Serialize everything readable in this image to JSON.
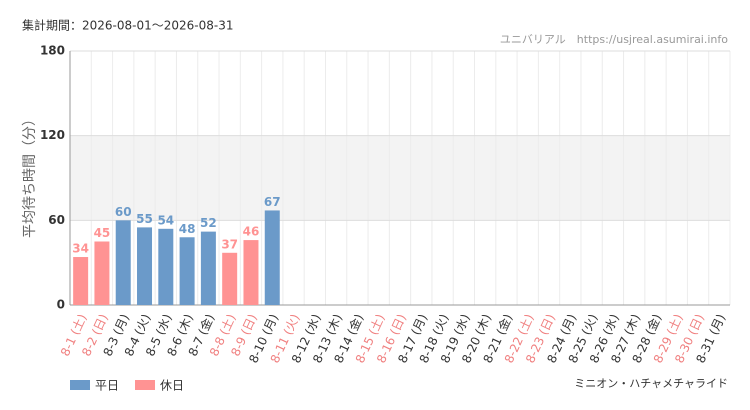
{
  "chart_data": {
    "type": "bar",
    "title": "集計期間：2026-08-01～2026-08-31",
    "source": "ユニバリアル　https://usjreal.asumirai.info",
    "subtitle": "ミニオン・ハチャメチャライド",
    "y_label": "平均待ち時間（分）",
    "categories": [
      "8-1 (土)",
      "8-2 (日)",
      "8-3 (月)",
      "8-4 (火)",
      "8-5 (水)",
      "8-6 (木)",
      "8-7 (金)",
      "8-8 (土)",
      "8-9 (日)",
      "8-10 (月)",
      "8-11 (火)",
      "8-12 (水)",
      "8-13 (木)",
      "8-14 (金)",
      "8-15 (土)",
      "8-16 (日)",
      "8-17 (月)",
      "8-18 (火)",
      "8-19 (水)",
      "8-20 (木)",
      "8-21 (金)",
      "8-22 (土)",
      "8-23 (日)",
      "8-24 (月)",
      "8-25 (火)",
      "8-26 (水)",
      "8-27 (木)",
      "8-28 (金)",
      "8-29 (土)",
      "8-30 (日)",
      "8-31 (月)"
    ],
    "holiday": [
      true,
      true,
      false,
      false,
      false,
      false,
      false,
      true,
      true,
      false,
      true,
      false,
      false,
      false,
      true,
      true,
      false,
      false,
      false,
      false,
      false,
      true,
      true,
      false,
      false,
      false,
      false,
      false,
      true,
      true,
      false
    ],
    "holiday_label_color": "#f08080",
    "series": [
      {
        "name": "平日",
        "color": "#6b9ac9",
        "values": [
          null,
          null,
          60,
          55,
          54,
          48,
          52,
          null,
          null,
          67,
          null,
          null,
          null,
          null,
          null,
          null,
          null,
          null,
          null,
          null,
          null,
          null,
          null,
          null,
          null,
          null,
          null,
          null,
          null,
          null,
          null
        ]
      },
      {
        "name": "休日",
        "color": "#ff9393",
        "values": [
          34,
          45,
          null,
          null,
          null,
          null,
          null,
          37,
          46,
          null,
          null,
          null,
          null,
          null,
          null,
          null,
          null,
          null,
          null,
          null,
          null,
          null,
          null,
          null,
          null,
          null,
          null,
          null,
          null,
          null,
          null
        ]
      }
    ],
    "ylim": [
      0,
      180
    ],
    "yticks": [
      0,
      60,
      120,
      180
    ],
    "highlight_band": [
      60,
      120
    ],
    "grid": true
  }
}
